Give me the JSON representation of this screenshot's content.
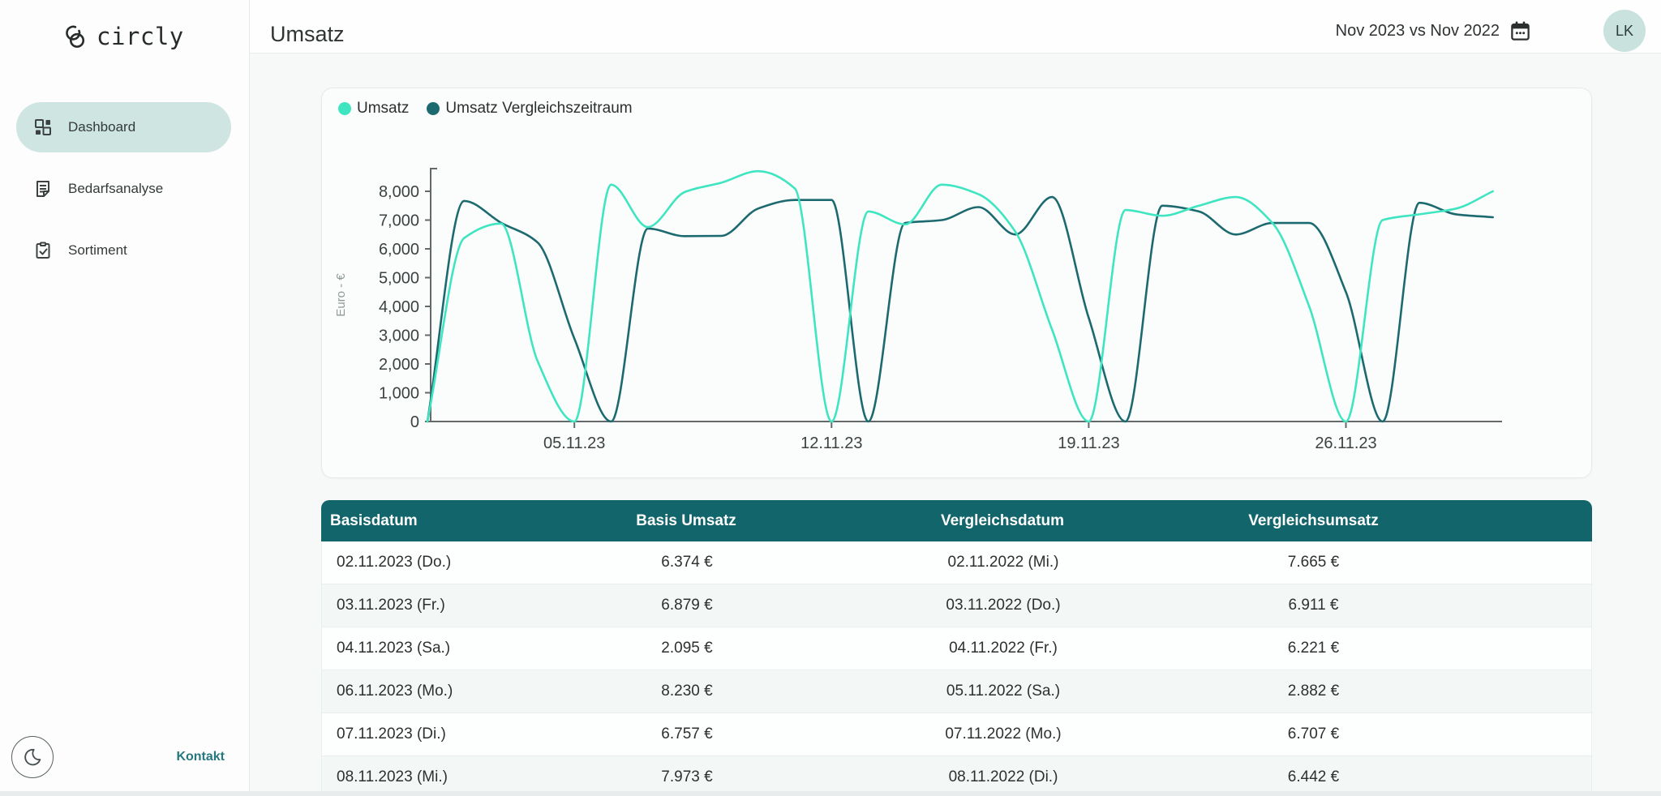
{
  "sidebar": {
    "logo_text": "circly",
    "items": [
      {
        "label": "Dashboard",
        "active": true
      },
      {
        "label": "Bedarfsanalyse",
        "active": false
      },
      {
        "label": "Sortiment",
        "active": false
      }
    ],
    "contact_label": "Kontakt"
  },
  "header": {
    "title": "Umsatz",
    "period_label": "Nov 2023 vs Nov 2022",
    "avatar_initials": "LK"
  },
  "colors": {
    "brand_teal_dark": "#12656b",
    "brand_teal_light": "#cfe5e1",
    "series_current": "#3fe5c1",
    "series_comparison": "#1c6a70",
    "link": "#26787e",
    "avatar_bg": "#c9e2de"
  },
  "chart_data": {
    "type": "line",
    "ylabel": "Euro - €",
    "ylim": [
      0,
      8000
    ],
    "grid": false,
    "legend_position": "top-left",
    "y_ticks": [
      0,
      1000,
      2000,
      3000,
      4000,
      5000,
      6000,
      7000,
      8000
    ],
    "y_tick_labels": [
      "0",
      "1,000",
      "2,000",
      "3,000",
      "4,000",
      "5,000",
      "6,000",
      "7,000",
      "8,000"
    ],
    "x_days": [
      1,
      2,
      3,
      4,
      5,
      6,
      7,
      8,
      9,
      10,
      11,
      12,
      13,
      14,
      15,
      16,
      17,
      18,
      19,
      20,
      21,
      22,
      23,
      24,
      25,
      26,
      27,
      28,
      29,
      30
    ],
    "x_ticks": [
      {
        "day": 5,
        "label": "05.11.23"
      },
      {
        "day": 12,
        "label": "12.11.23"
      },
      {
        "day": 19,
        "label": "19.11.23"
      },
      {
        "day": 26,
        "label": "26.11.23"
      }
    ],
    "series": [
      {
        "name": "Umsatz",
        "color": "#3fe5c1",
        "values": [
          0,
          6374,
          6879,
          2095,
          0,
          8230,
          6757,
          7973,
          8300,
          8700,
          8100,
          0,
          7300,
          6850,
          8230,
          7900,
          6600,
          3200,
          0,
          7350,
          7150,
          7500,
          7800,
          6900,
          4000,
          0,
          7000,
          7200,
          7400,
          8000
        ]
      },
      {
        "name": "Umsatz Vergleichszeitraum",
        "color": "#1c6a70",
        "values": [
          0,
          7665,
          6911,
          6221,
          2882,
          0,
          6707,
          6442,
          6450,
          7400,
          7700,
          7700,
          0,
          6900,
          7000,
          7450,
          6500,
          7800,
          3600,
          0,
          7500,
          7300,
          6500,
          6900,
          6900,
          4500,
          0,
          7600,
          7200,
          7100
        ]
      }
    ]
  },
  "table": {
    "columns": [
      "Basisdatum",
      "Basis Umsatz",
      "Vergleichsdatum",
      "Vergleichsumsatz"
    ],
    "rows": [
      [
        "02.11.2023 (Do.)",
        "6.374 €",
        "02.11.2022 (Mi.)",
        "7.665 €"
      ],
      [
        "03.11.2023 (Fr.)",
        "6.879 €",
        "03.11.2022 (Do.)",
        "6.911 €"
      ],
      [
        "04.11.2023 (Sa.)",
        "2.095 €",
        "04.11.2022 (Fr.)",
        "6.221 €"
      ],
      [
        "06.11.2023 (Mo.)",
        "8.230 €",
        "05.11.2022 (Sa.)",
        "2.882 €"
      ],
      [
        "07.11.2023 (Di.)",
        "6.757 €",
        "07.11.2022 (Mo.)",
        "6.707 €"
      ],
      [
        "08.11.2023 (Mi.)",
        "7.973 €",
        "08.11.2022 (Di.)",
        "6.442 €"
      ]
    ]
  }
}
